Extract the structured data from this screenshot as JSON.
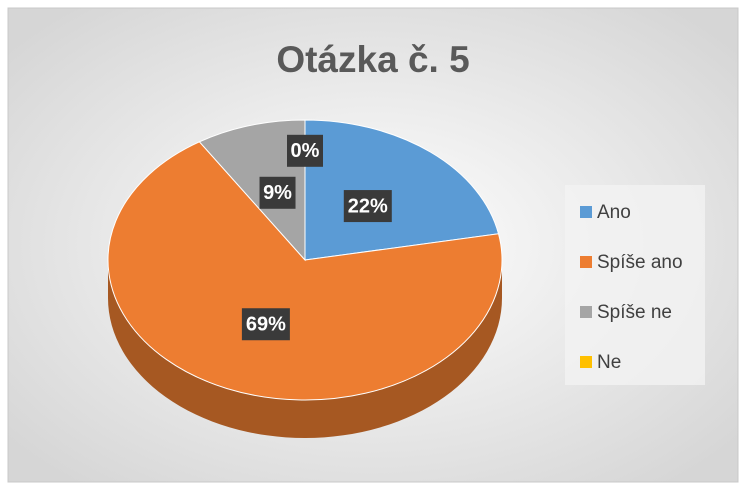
{
  "chart_data": {
    "type": "pie",
    "title": "Otázka č. 5",
    "categories": [
      "Ano",
      "Spíše ano",
      "Spíše ne",
      "Ne"
    ],
    "values": [
      22,
      69,
      9,
      0
    ],
    "value_labels": [
      "22%",
      "69%",
      "9%",
      "0%"
    ],
    "colors": [
      "#5b9bd5",
      "#ed7d31",
      "#a5a5a5",
      "#ffc000"
    ],
    "legend": "right"
  }
}
